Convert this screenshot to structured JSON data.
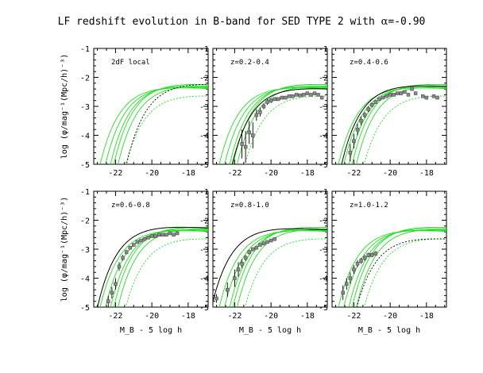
{
  "title_prefix": "LF redshift evolution in B-band for SED TYPE 2 with ",
  "title_alpha_symbol": "α",
  "title_alpha_value": "=-0.90",
  "colors": {
    "axis": "#000000",
    "green": "#22dd22",
    "data_point": "#888888",
    "fit": "#000000"
  },
  "chart_data": [
    {
      "type": "line",
      "panel": "2dF local",
      "label": "2dF local",
      "xlabel": "",
      "ylabel": "log (φ/mag⁻¹(Mpc/h)⁻³)",
      "xlim": [
        -23.2,
        -16.9
      ],
      "ylim": [
        -5,
        -1
      ],
      "xticks": [
        -22,
        -20,
        -18
      ],
      "yticks": [
        -5,
        -4,
        -3,
        -2,
        -1
      ],
      "green_curves": [
        {
          "Mstar": -20.2,
          "logphi": -2.55
        },
        {
          "Mstar": -20.5,
          "logphi": -2.6
        },
        {
          "Mstar": -20.8,
          "logphi": -2.62
        },
        {
          "Mstar": -20.0,
          "logphi": -2.5
        },
        {
          "Mstar": -19.8,
          "logphi": -2.58
        }
      ],
      "green_dotted": {
        "Mstar": -19.5,
        "logphi": -2.9
      },
      "black_dotted": {
        "Mstar": -19.3,
        "logphi": -2.5
      },
      "points": []
    },
    {
      "type": "scatter",
      "panel": "z=0.2-0.4",
      "label": "z=0.2-0.4",
      "xlabel": "",
      "ylabel": "",
      "xlim": [
        -23.2,
        -16.9
      ],
      "ylim": [
        -5,
        -1
      ],
      "xticks": [
        -22,
        -20,
        -18
      ],
      "yticks": [
        -5,
        -4,
        -3,
        -2,
        -1
      ],
      "green_curves": [
        {
          "Mstar": -20.2,
          "logphi": -2.55
        },
        {
          "Mstar": -20.5,
          "logphi": -2.6
        },
        {
          "Mstar": -20.8,
          "logphi": -2.62
        },
        {
          "Mstar": -20.0,
          "logphi": -2.5
        },
        {
          "Mstar": -19.8,
          "logphi": -2.58
        }
      ],
      "green_dotted": {
        "Mstar": -19.5,
        "logphi": -2.9
      },
      "black_fit": {
        "Mstar": -20.1,
        "logphi": -2.65
      },
      "points": [
        {
          "x": -21.6,
          "y": -4.3,
          "err": 0.5
        },
        {
          "x": -21.4,
          "y": -4.4,
          "err": 0.55
        },
        {
          "x": -21.2,
          "y": -3.9,
          "err": 0.4
        },
        {
          "x": -21.0,
          "y": -4.0,
          "err": 0.45
        },
        {
          "x": -20.8,
          "y": -3.3,
          "err": 0.2
        },
        {
          "x": -20.6,
          "y": -3.2,
          "err": 0.15
        },
        {
          "x": -20.4,
          "y": -3.0,
          "err": 0.1
        },
        {
          "x": -20.2,
          "y": -2.85,
          "err": 0.1
        },
        {
          "x": -20.0,
          "y": -2.8,
          "err": 0.08
        },
        {
          "x": -19.8,
          "y": -2.75,
          "err": 0.06
        },
        {
          "x": -19.6,
          "y": -2.75,
          "err": 0.06
        },
        {
          "x": -19.4,
          "y": -2.7,
          "err": 0.06
        },
        {
          "x": -19.2,
          "y": -2.7,
          "err": 0.06
        },
        {
          "x": -19.0,
          "y": -2.65,
          "err": 0.05
        },
        {
          "x": -18.8,
          "y": -2.65,
          "err": 0.05
        },
        {
          "x": -18.6,
          "y": -2.6,
          "err": 0.05
        },
        {
          "x": -18.4,
          "y": -2.62,
          "err": 0.05
        },
        {
          "x": -18.2,
          "y": -2.6,
          "err": 0.05
        },
        {
          "x": -18.0,
          "y": -2.55,
          "err": 0.05
        },
        {
          "x": -17.8,
          "y": -2.6,
          "err": 0.05
        },
        {
          "x": -17.6,
          "y": -2.55,
          "err": 0.05
        },
        {
          "x": -17.4,
          "y": -2.6,
          "err": 0.05
        },
        {
          "x": -17.2,
          "y": -2.7,
          "err": 0.06
        }
      ]
    },
    {
      "type": "scatter",
      "panel": "z=0.4-0.6",
      "label": "z=0.4-0.6",
      "xlabel": "",
      "ylabel": "",
      "xlim": [
        -23.2,
        -16.9
      ],
      "ylim": [
        -5,
        -1
      ],
      "xticks": [
        -22,
        -20,
        -18
      ],
      "yticks": [
        -5,
        -4,
        -3,
        -2,
        -1
      ],
      "green_curves": [
        {
          "Mstar": -20.2,
          "logphi": -2.55
        },
        {
          "Mstar": -20.5,
          "logphi": -2.6
        },
        {
          "Mstar": -20.8,
          "logphi": -2.62
        },
        {
          "Mstar": -20.0,
          "logphi": -2.5
        },
        {
          "Mstar": -19.8,
          "logphi": -2.58
        }
      ],
      "green_dotted": {
        "Mstar": -19.5,
        "logphi": -2.9
      },
      "black_fit": {
        "Mstar": -20.6,
        "logphi": -2.55
      },
      "points": [
        {
          "x": -22.2,
          "y": -4.6,
          "err": 0.3
        },
        {
          "x": -22.0,
          "y": -4.2,
          "err": 0.25
        },
        {
          "x": -21.8,
          "y": -3.8,
          "err": 0.2
        },
        {
          "x": -21.6,
          "y": -3.5,
          "err": 0.15
        },
        {
          "x": -21.4,
          "y": -3.3,
          "err": 0.1
        },
        {
          "x": -21.2,
          "y": -3.1,
          "err": 0.1
        },
        {
          "x": -21.0,
          "y": -2.95,
          "err": 0.08
        },
        {
          "x": -20.8,
          "y": -2.85,
          "err": 0.06
        },
        {
          "x": -20.6,
          "y": -2.75,
          "err": 0.05
        },
        {
          "x": -20.4,
          "y": -2.7,
          "err": 0.05
        },
        {
          "x": -20.2,
          "y": -2.65,
          "err": 0.05
        },
        {
          "x": -20.0,
          "y": -2.6,
          "err": 0.05
        },
        {
          "x": -19.8,
          "y": -2.6,
          "err": 0.05
        },
        {
          "x": -19.6,
          "y": -2.55,
          "err": 0.05
        },
        {
          "x": -19.4,
          "y": -2.55,
          "err": 0.05
        },
        {
          "x": -19.2,
          "y": -2.5,
          "err": 0.05
        },
        {
          "x": -19.0,
          "y": -2.6,
          "err": 0.05
        },
        {
          "x": -18.8,
          "y": -2.4,
          "err": 0.05
        },
        {
          "x": -18.6,
          "y": -2.55,
          "err": 0.05
        },
        {
          "x": -18.2,
          "y": -2.65,
          "err": 0.06
        },
        {
          "x": -18.0,
          "y": -2.7,
          "err": 0.06
        },
        {
          "x": -17.6,
          "y": -2.65,
          "err": 0.06
        },
        {
          "x": -17.4,
          "y": -2.7,
          "err": 0.06
        }
      ]
    },
    {
      "type": "scatter",
      "panel": "z=0.6-0.8",
      "label": "z=0.6-0.8",
      "xlabel": "M_B - 5 log h",
      "ylabel": "log (φ/mag⁻¹(Mpc/h)⁻³)",
      "xlim": [
        -23.2,
        -16.9
      ],
      "ylim": [
        -5,
        -1
      ],
      "xticks": [
        -22,
        -20,
        -18
      ],
      "yticks": [
        -5,
        -4,
        -3,
        -2,
        -1
      ],
      "green_curves": [
        {
          "Mstar": -20.2,
          "logphi": -2.55
        },
        {
          "Mstar": -20.5,
          "logphi": -2.6
        },
        {
          "Mstar": -20.8,
          "logphi": -2.62
        },
        {
          "Mstar": -20.0,
          "logphi": -2.5
        },
        {
          "Mstar": -19.8,
          "logphi": -2.58
        }
      ],
      "green_dotted": {
        "Mstar": -19.5,
        "logphi": -2.9
      },
      "black_fit": {
        "Mstar": -20.9,
        "logphi": -2.5
      },
      "points": [
        {
          "x": -22.4,
          "y": -4.8,
          "err": 0.2
        },
        {
          "x": -22.2,
          "y": -4.5,
          "err": 0.2
        },
        {
          "x": -22.0,
          "y": -4.2,
          "err": 0.2
        },
        {
          "x": -21.8,
          "y": -3.6,
          "err": 0.15
        },
        {
          "x": -21.6,
          "y": -3.3,
          "err": 0.1
        },
        {
          "x": -21.4,
          "y": -3.1,
          "err": 0.08
        },
        {
          "x": -21.2,
          "y": -2.95,
          "err": 0.06
        },
        {
          "x": -21.0,
          "y": -2.85,
          "err": 0.05
        },
        {
          "x": -20.8,
          "y": -2.75,
          "err": 0.05
        },
        {
          "x": -20.6,
          "y": -2.7,
          "err": 0.05
        },
        {
          "x": -20.4,
          "y": -2.65,
          "err": 0.05
        },
        {
          "x": -20.2,
          "y": -2.6,
          "err": 0.05
        },
        {
          "x": -20.0,
          "y": -2.55,
          "err": 0.05
        },
        {
          "x": -19.8,
          "y": -2.55,
          "err": 0.05
        },
        {
          "x": -19.6,
          "y": -2.5,
          "err": 0.05
        },
        {
          "x": -19.4,
          "y": -2.5,
          "err": 0.05
        },
        {
          "x": -19.2,
          "y": -2.5,
          "err": 0.05
        },
        {
          "x": -19.0,
          "y": -2.45,
          "err": 0.05
        },
        {
          "x": -18.8,
          "y": -2.5,
          "err": 0.05
        },
        {
          "x": -18.6,
          "y": -2.45,
          "err": 0.05
        }
      ]
    },
    {
      "type": "scatter",
      "panel": "z=0.8-1.0",
      "label": "z=0.8-1.0",
      "xlabel": "M_B - 5 log h",
      "ylabel": "",
      "xlim": [
        -23.2,
        -16.9
      ],
      "ylim": [
        -5,
        -1
      ],
      "xticks": [
        -22,
        -20,
        -18
      ],
      "yticks": [
        -5,
        -4,
        -3,
        -2,
        -1
      ],
      "green_curves": [
        {
          "Mstar": -20.2,
          "logphi": -2.55
        },
        {
          "Mstar": -20.5,
          "logphi": -2.6
        },
        {
          "Mstar": -20.8,
          "logphi": -2.62
        },
        {
          "Mstar": -20.0,
          "logphi": -2.5
        },
        {
          "Mstar": -19.8,
          "logphi": -2.58
        }
      ],
      "green_dotted": {
        "Mstar": -19.5,
        "logphi": -2.9
      },
      "black_fit": {
        "Mstar": -21.2,
        "logphi": -2.55
      },
      "points": [
        {
          "x": -23.0,
          "y": -4.7,
          "err": 0.15
        },
        {
          "x": -22.4,
          "y": -4.4,
          "err": 0.25
        },
        {
          "x": -22.0,
          "y": -4.0,
          "err": 0.3
        },
        {
          "x": -21.8,
          "y": -3.7,
          "err": 0.25
        },
        {
          "x": -21.6,
          "y": -3.5,
          "err": 0.15
        },
        {
          "x": -21.4,
          "y": -3.3,
          "err": 0.1
        },
        {
          "x": -21.2,
          "y": -3.1,
          "err": 0.08
        },
        {
          "x": -21.0,
          "y": -3.0,
          "err": 0.06
        },
        {
          "x": -20.8,
          "y": -2.95,
          "err": 0.06
        },
        {
          "x": -20.6,
          "y": -2.85,
          "err": 0.05
        },
        {
          "x": -20.4,
          "y": -2.8,
          "err": 0.05
        },
        {
          "x": -20.2,
          "y": -2.75,
          "err": 0.05
        },
        {
          "x": -20.0,
          "y": -2.7,
          "err": 0.05
        },
        {
          "x": -19.8,
          "y": -2.65,
          "err": 0.05
        }
      ]
    },
    {
      "type": "scatter",
      "panel": "z=1.0-1.2",
      "label": "z=1.0-1.2",
      "xlabel": "M_B - 5 log h",
      "ylabel": "",
      "xlim": [
        -23.2,
        -16.9
      ],
      "ylim": [
        -5,
        -1
      ],
      "xticks": [
        -22,
        -20,
        -18
      ],
      "yticks": [
        -5,
        -4,
        -3,
        -2,
        -1
      ],
      "green_curves": [
        {
          "Mstar": -20.2,
          "logphi": -2.55
        },
        {
          "Mstar": -20.5,
          "logphi": -2.6
        },
        {
          "Mstar": -20.8,
          "logphi": -2.62
        },
        {
          "Mstar": -20.0,
          "logphi": -2.5
        },
        {
          "Mstar": -19.8,
          "logphi": -2.58
        }
      ],
      "green_dotted": {
        "Mstar": -19.5,
        "logphi": -2.9
      },
      "black_dotted": {
        "Mstar": -19.9,
        "logphi": -2.9
      },
      "points": [
        {
          "x": -22.6,
          "y": -4.5,
          "err": 0.25
        },
        {
          "x": -22.4,
          "y": -4.2,
          "err": 0.2
        },
        {
          "x": -22.2,
          "y": -4.0,
          "err": 0.2
        },
        {
          "x": -22.0,
          "y": -3.7,
          "err": 0.15
        },
        {
          "x": -21.8,
          "y": -3.5,
          "err": 0.12
        },
        {
          "x": -21.6,
          "y": -3.4,
          "err": 0.1
        },
        {
          "x": -21.4,
          "y": -3.3,
          "err": 0.1
        },
        {
          "x": -21.2,
          "y": -3.2,
          "err": 0.08
        },
        {
          "x": -21.0,
          "y": -3.2,
          "err": 0.08
        },
        {
          "x": -20.8,
          "y": -3.15,
          "err": 0.08
        }
      ]
    }
  ]
}
